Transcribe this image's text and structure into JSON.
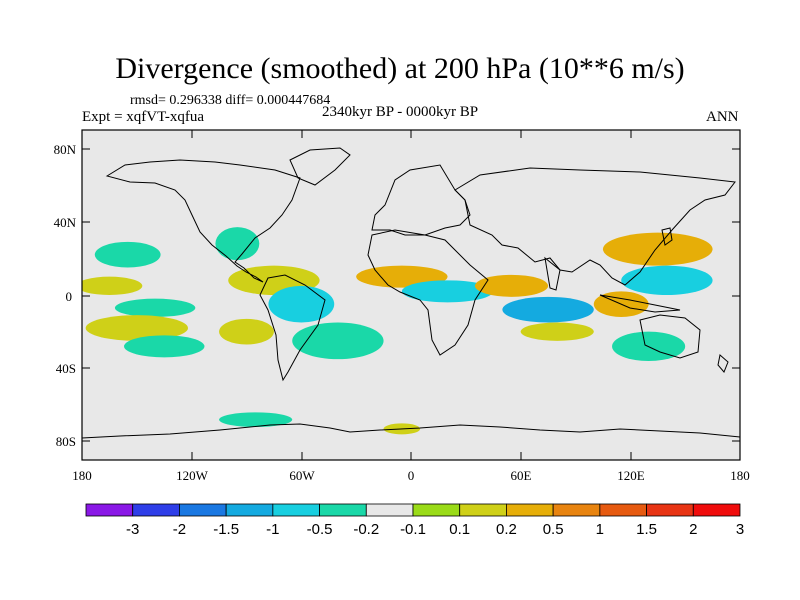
{
  "title": "Divergence (smoothed) at 200 hPa (10**6 m/s)",
  "stats": "rmsd= 0.296338 diff= 0.000447684",
  "experiment": "Expt = xqfVT-xqfua",
  "period": "2340kyr BP - 0000kyr BP",
  "season": "ANN",
  "lat_ticks": [
    "80N",
    "40N",
    "0",
    "40S",
    "80S"
  ],
  "lon_ticks": [
    "180",
    "120W",
    "60W",
    "0",
    "60E",
    "120E",
    "180"
  ],
  "colorbar": {
    "colors": [
      "#8a18e6",
      "#2e3ee8",
      "#1a78e2",
      "#14aae0",
      "#18cfe0",
      "#1ad8a8",
      "#e8e8e8",
      "#9adb18",
      "#cfd018",
      "#e6ae08",
      "#e88410",
      "#e65a10",
      "#e83414",
      "#f00c0c"
    ],
    "labels": [
      "-3",
      "-2",
      "-1.5",
      "-1",
      "-0.5",
      "-0.2",
      "-0.1",
      "0.1",
      "0.2",
      "0.5",
      "1",
      "1.5",
      "2",
      "3"
    ]
  },
  "map": {
    "background": "#e8e8e8",
    "regions": [
      {
        "value": -0.3,
        "lon": -155,
        "lat": 22,
        "rx": 18,
        "ry": 7
      },
      {
        "value": 0.3,
        "lon": -165,
        "lat": 5,
        "rx": 18,
        "ry": 5
      },
      {
        "value": -0.3,
        "lon": -140,
        "lat": -7,
        "rx": 22,
        "ry": 5
      },
      {
        "value": 0.3,
        "lon": -150,
        "lat": -18,
        "rx": 28,
        "ry": 7
      },
      {
        "value": -0.3,
        "lon": -135,
        "lat": -28,
        "rx": 22,
        "ry": 6
      },
      {
        "value": -0.3,
        "lon": -95,
        "lat": 28,
        "rx": 12,
        "ry": 9
      },
      {
        "value": 0.3,
        "lon": -75,
        "lat": 8,
        "rx": 25,
        "ry": 8
      },
      {
        "value": -0.7,
        "lon": -60,
        "lat": -5,
        "rx": 18,
        "ry": 10
      },
      {
        "value": 0.3,
        "lon": -90,
        "lat": -20,
        "rx": 15,
        "ry": 7
      },
      {
        "value": -0.3,
        "lon": -40,
        "lat": -25,
        "rx": 25,
        "ry": 10
      },
      {
        "value": 0.7,
        "lon": -5,
        "lat": 10,
        "rx": 25,
        "ry": 6
      },
      {
        "value": -0.7,
        "lon": 20,
        "lat": 2,
        "rx": 25,
        "ry": 6
      },
      {
        "value": 0.7,
        "lon": 55,
        "lat": 5,
        "rx": 20,
        "ry": 6
      },
      {
        "value": -1.2,
        "lon": 75,
        "lat": -8,
        "rx": 25,
        "ry": 7
      },
      {
        "value": 0.3,
        "lon": 80,
        "lat": -20,
        "rx": 20,
        "ry": 5
      },
      {
        "value": 0.7,
        "lon": 135,
        "lat": 25,
        "rx": 30,
        "ry": 9
      },
      {
        "value": -0.7,
        "lon": 140,
        "lat": 8,
        "rx": 25,
        "ry": 8
      },
      {
        "value": 0.7,
        "lon": 115,
        "lat": -5,
        "rx": 15,
        "ry": 7
      },
      {
        "value": -0.3,
        "lon": 130,
        "lat": -28,
        "rx": 20,
        "ry": 8
      },
      {
        "value": -0.3,
        "lon": -85,
        "lat": -68,
        "rx": 20,
        "ry": 4
      },
      {
        "value": 0.3,
        "lon": -5,
        "lat": -73,
        "rx": 10,
        "ry": 3
      }
    ]
  }
}
